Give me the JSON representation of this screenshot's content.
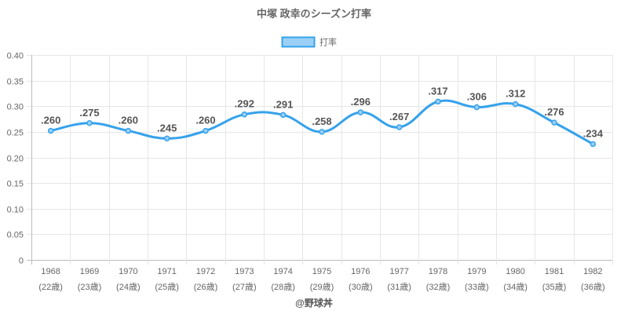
{
  "chart_data": {
    "type": "line",
    "title": "中塚 政幸のシーズン打率",
    "legend": {
      "label": "打率",
      "placement": "top-center"
    },
    "categories": [
      "1968",
      "1969",
      "1970",
      "1971",
      "1972",
      "1973",
      "1974",
      "1975",
      "1976",
      "1977",
      "1978",
      "1979",
      "1980",
      "1981",
      "1982"
    ],
    "sublabels": [
      "(22歳)",
      "(23歳)",
      "(24歳)",
      "(25歳)",
      "(26歳)",
      "(27歳)",
      "(28歳)",
      "(29歳)",
      "(30歳)",
      "(31歳)",
      "(32歳)",
      "(33歳)",
      "(34歳)",
      "(35歳)",
      "(36歳)"
    ],
    "values": [
      0.26,
      0.275,
      0.26,
      0.245,
      0.26,
      0.292,
      0.291,
      0.258,
      0.296,
      0.267,
      0.317,
      0.306,
      0.312,
      0.276,
      0.234
    ],
    "data_labels": [
      ".260",
      ".275",
      ".260",
      ".245",
      ".260",
      ".292",
      ".291",
      ".258",
      ".296",
      ".267",
      ".317",
      ".306",
      ".312",
      ".276",
      ".234"
    ],
    "ylim": [
      0,
      0.4
    ],
    "yticks": [
      "0",
      "0.05",
      "0.10",
      "0.15",
      "0.20",
      "0.25",
      "0.30",
      "0.35",
      "0.40"
    ],
    "grid": true,
    "xlabel": "",
    "ylabel": "",
    "line_color": "#36a2eb",
    "fill_color": "#9ad0f5"
  },
  "credit": "@野球丼"
}
